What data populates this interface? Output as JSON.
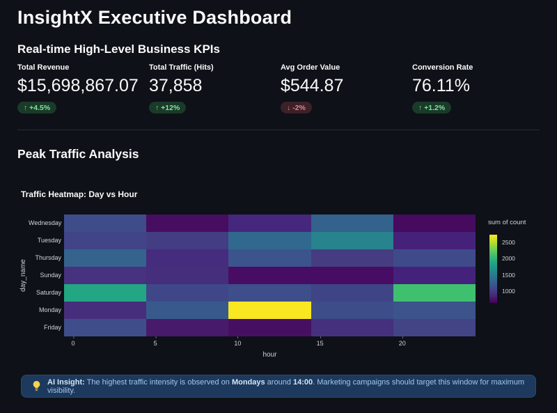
{
  "page": {
    "bg": "#0e1117",
    "title": "InsightX Executive Dashboard"
  },
  "kpi_section": {
    "title": "Real-time High-Level Business KPIs",
    "metrics": [
      {
        "label": "Total Revenue",
        "value": "$15,698,867.07",
        "delta": "↑ +4.5%",
        "trend": "up"
      },
      {
        "label": "Total Traffic (Hits)",
        "value": "37,858",
        "delta": "↑ +12%",
        "trend": "up"
      },
      {
        "label": "Avg Order Value",
        "value": "$544.87",
        "delta": "↓ -2%",
        "trend": "down"
      },
      {
        "label": "Conversion Rate",
        "value": "76.11%",
        "delta": "↑ +1.2%",
        "trend": "up"
      }
    ],
    "trend_colors": {
      "up_bg": "#1a3a2a",
      "up_text": "#7ee59b",
      "down_bg": "#3c2127",
      "down_text": "#e4848c"
    }
  },
  "traffic_section": {
    "title": "Peak Traffic Analysis"
  },
  "chart_data": {
    "type": "heatmap",
    "title": "Traffic Heatmap: Day vs Hour",
    "xlabel": "hour",
    "ylabel": "day_name",
    "x_ticks": [
      0,
      5,
      10,
      15,
      20
    ],
    "hour_bins": [
      "0-4",
      "5-9",
      "10-14",
      "15-19",
      "20-24"
    ],
    "categories": [
      "Wednesday",
      "Tuesday",
      "Thursday",
      "Sunday",
      "Saturday",
      "Monday",
      "Friday"
    ],
    "series": [
      {
        "name": "Wednesday",
        "values": [
          1080,
          715,
          850,
          1245,
          700
        ],
        "colors": [
          "#3f4c8a",
          "#470d60",
          "#45277d",
          "#33628d",
          "#460a5e"
        ]
      },
      {
        "name": "Tuesday",
        "values": [
          1025,
          985,
          1290,
          1520,
          820
        ],
        "colors": [
          "#414487",
          "#433d84",
          "#31688e",
          "#27838d",
          "#45217a"
        ]
      },
      {
        "name": "Thursday",
        "values": [
          1235,
          860,
          1140,
          975,
          1060
        ],
        "colors": [
          "#35638d",
          "#452c7d",
          "#3b548c",
          "#453c81",
          "#3e4a89"
        ]
      },
      {
        "name": "Sunday",
        "values": [
          890,
          870,
          715,
          710,
          830
        ],
        "colors": [
          "#46327e",
          "#452e7b",
          "#470d64",
          "#470c63",
          "#44227b"
        ]
      },
      {
        "name": "Saturday",
        "values": [
          1865,
          1050,
          1090,
          1015,
          2135
        ],
        "colors": [
          "#23a684",
          "#3f4789",
          "#3d4e8a",
          "#3f4486",
          "#3ec06f"
        ]
      },
      {
        "name": "Monday",
        "values": [
          860,
          1185,
          2720,
          1080,
          1130
        ],
        "colors": [
          "#472e7c",
          "#38598c",
          "#f9e721",
          "#3d4d8a",
          "#3c538b"
        ]
      },
      {
        "name": "Friday",
        "values": [
          1090,
          765,
          725,
          880,
          1030
        ],
        "colors": [
          "#3f4e8a",
          "#481a6c",
          "#470f62",
          "#45307d",
          "#424486"
        ]
      }
    ],
    "legend": {
      "title": "sum of count",
      "ticks": [
        2500,
        2000,
        1500,
        1000
      ],
      "min": 640,
      "max": 2730,
      "gradient": [
        "#fde725",
        "#bddf26",
        "#7ad151",
        "#44bf70",
        "#22a884",
        "#21918c",
        "#2a788e",
        "#355f8d",
        "#414487",
        "#482475",
        "#440154"
      ]
    }
  },
  "insight": {
    "icon": "lightbulb",
    "label": "AI Insight:",
    "segments": [
      {
        "text": " The highest traffic intensity is observed on ",
        "bold": false
      },
      {
        "text": "Mondays",
        "bold": true
      },
      {
        "text": " around ",
        "bold": false
      },
      {
        "text": "14:00",
        "bold": true
      },
      {
        "text": ". Marketing campaigns should target this window for maximum visibility.",
        "bold": false
      }
    ],
    "colors": {
      "bg": "#1d3a5e",
      "text": "#a3c6e8",
      "bold_text": "#d3e6f8"
    }
  }
}
